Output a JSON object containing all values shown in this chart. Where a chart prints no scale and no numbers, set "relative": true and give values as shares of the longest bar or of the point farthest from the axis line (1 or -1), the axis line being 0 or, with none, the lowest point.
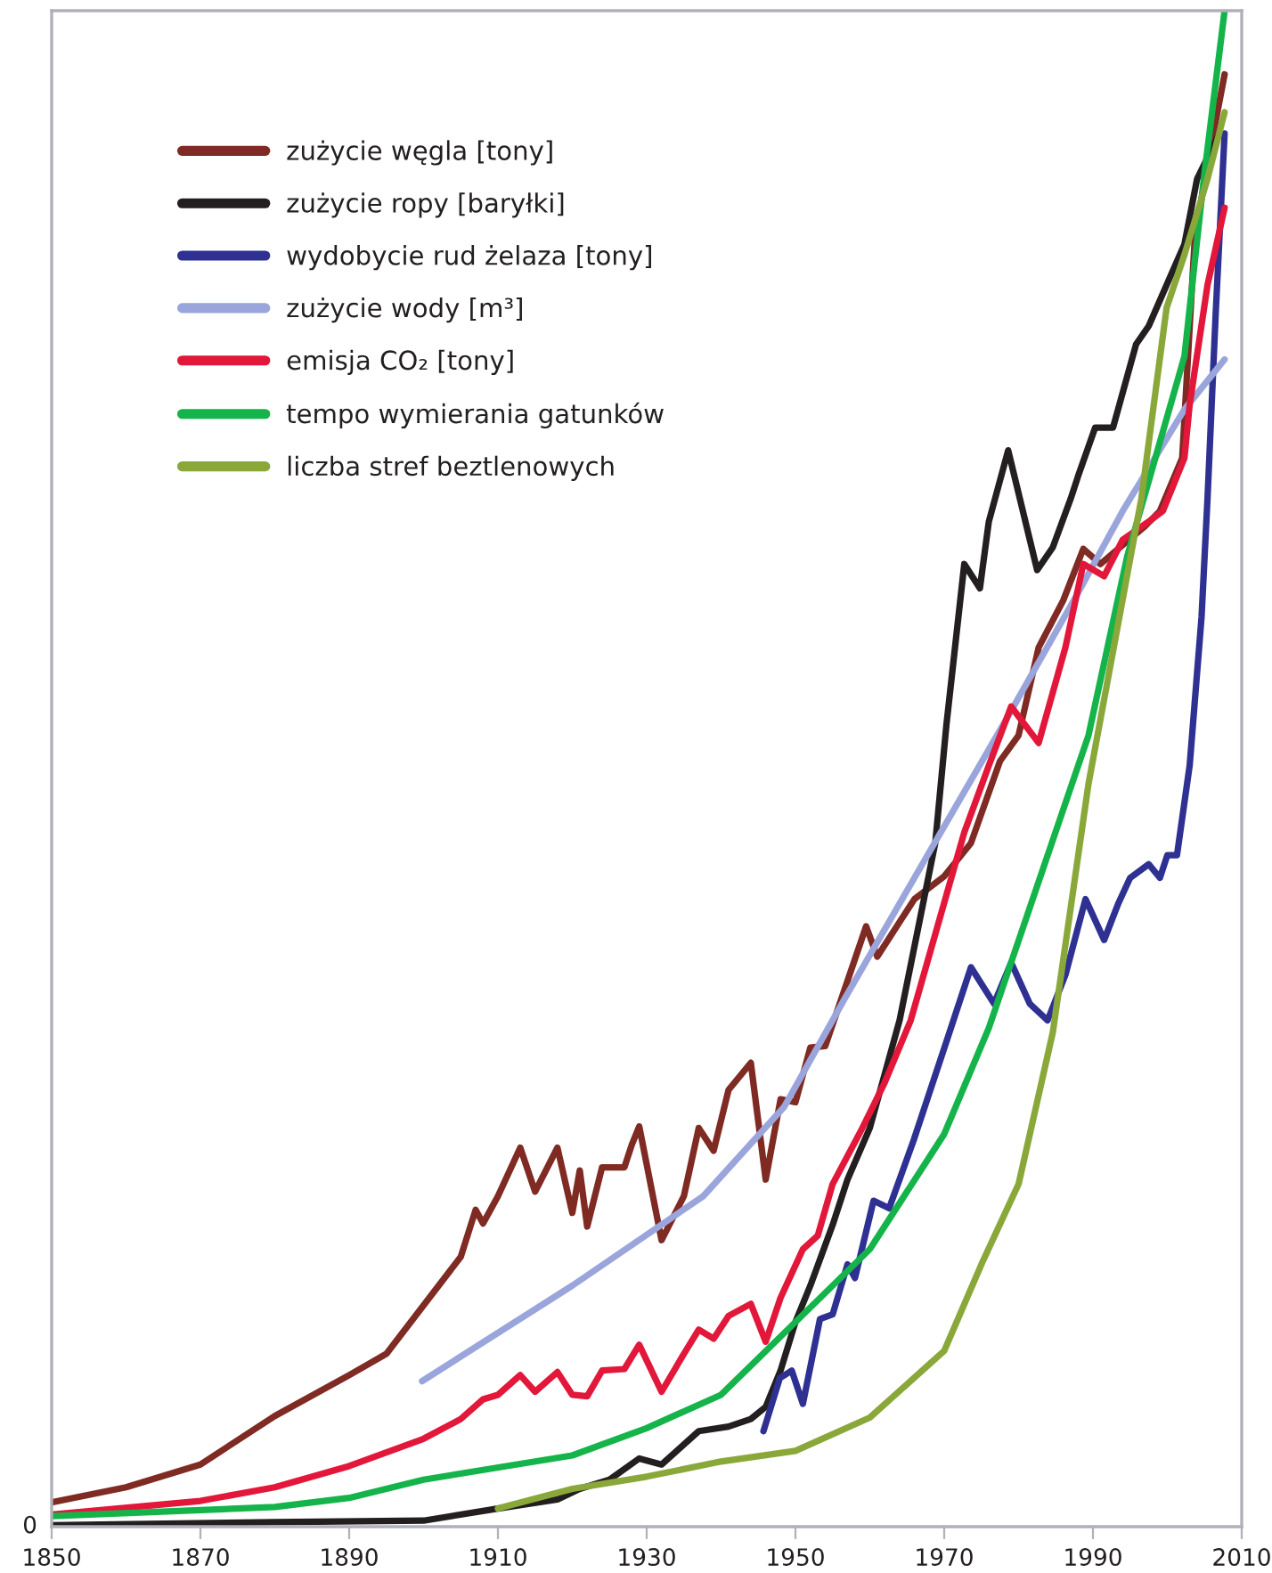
{
  "chart_data": {
    "type": "line",
    "relative": true,
    "xlim": [
      1850,
      2010
    ],
    "xticks": [
      1850,
      1870,
      1890,
      1910,
      1930,
      1950,
      1970,
      1990,
      2010
    ],
    "annotations": [
      "0"
    ],
    "legend": "top left",
    "grid": false,
    "series": [
      {
        "name": "zużycie węgla [tony]",
        "color": "#7f2a23",
        "x": [
          1850,
          1860,
          1870,
          1880,
          1890,
          1895,
          1900,
          1905,
          1907,
          1908,
          1910,
          1913,
          1915,
          1918,
          1920,
          1921,
          1922,
          1924,
          1927,
          1928,
          1929,
          1932,
          1935,
          1937,
          1939,
          1941,
          1944,
          1946,
          1948,
          1950,
          1952,
          1954,
          1957,
          1959.5,
          1961,
          1966,
          1970,
          1973.6,
          1977.5,
          1980,
          1982.7,
          1986,
          1988.7,
          1991,
          1997,
          1999,
          2002,
          2003.7,
          2005.8,
          2007.7
        ],
        "values": [
          0.016,
          0.026,
          0.041,
          0.073,
          0.1,
          0.114,
          0.146,
          0.178,
          0.209,
          0.2,
          0.218,
          0.25,
          0.221,
          0.25,
          0.207,
          0.235,
          0.198,
          0.237,
          0.237,
          0.252,
          0.264,
          0.189,
          0.218,
          0.263,
          0.248,
          0.288,
          0.306,
          0.229,
          0.282,
          0.28,
          0.316,
          0.317,
          0.36,
          0.396,
          0.376,
          0.414,
          0.429,
          0.451,
          0.505,
          0.522,
          0.58,
          0.611,
          0.645,
          0.635,
          0.66,
          0.67,
          0.705,
          0.851,
          0.909,
          0.958
        ]
      },
      {
        "name": "zużycie ropy [baryłki]",
        "color": "#231f20",
        "x": [
          1850,
          1880,
          1900,
          1910,
          1918,
          1921,
          1925,
          1929,
          1932,
          1937,
          1941,
          1944,
          1946,
          1948,
          1950,
          1952,
          1955,
          1957,
          1960,
          1964,
          1968.8,
          1970.3,
          1972.7,
          1974.8,
          1976,
          1978.6,
          1982.5,
          1984.6,
          1987,
          1988,
          1990.3,
          1992.7,
          1995.8,
          1997.5,
          1999.9,
          2002.3,
          2004,
          2007
        ],
        "values": [
          0.001,
          0.003,
          0.004,
          0.012,
          0.018,
          0.025,
          0.031,
          0.045,
          0.041,
          0.063,
          0.066,
          0.071,
          0.079,
          0.103,
          0.135,
          0.159,
          0.199,
          0.229,
          0.263,
          0.334,
          0.451,
          0.529,
          0.635,
          0.619,
          0.663,
          0.71,
          0.631,
          0.646,
          0.678,
          0.693,
          0.725,
          0.725,
          0.78,
          0.792,
          0.819,
          0.846,
          0.889,
          0.919
        ]
      },
      {
        "name": "wydobycie rud żelaza [tony]",
        "color": "#2e3192",
        "x": [
          1945.7,
          1947.9,
          1949.5,
          1951,
          1953.3,
          1955,
          1957,
          1958,
          1960.5,
          1962.6,
          1965.9,
          1970.3,
          1973.6,
          1976.7,
          1979,
          1981.5,
          1983.9,
          1986.3,
          1989,
          1991.5,
          1993.4,
          1995,
          1997.5,
          1999,
          2000,
          2001.3,
          2003,
          2004.6,
          2005.4,
          2006.5,
          2007.7
        ],
        "values": [
          0.063,
          0.098,
          0.103,
          0.081,
          0.137,
          0.14,
          0.173,
          0.164,
          0.215,
          0.21,
          0.255,
          0.32,
          0.369,
          0.345,
          0.372,
          0.345,
          0.334,
          0.364,
          0.414,
          0.387,
          0.411,
          0.428,
          0.437,
          0.428,
          0.443,
          0.443,
          0.502,
          0.6,
          0.678,
          0.8,
          0.919
        ]
      },
      {
        "name": "zużycie wody [m³]",
        "color": "#9aa5dc",
        "x": [
          1899.8,
          1920,
          1937.6,
          1948.5,
          1956.7,
          1966,
          1978.4,
          1988,
          1994,
          2002.3,
          2007.7
        ],
        "values": [
          0.096,
          0.159,
          0.218,
          0.277,
          0.349,
          0.428,
          0.533,
          0.616,
          0.67,
          0.737,
          0.77
        ]
      },
      {
        "name": "emisja CO₂ [tony]",
        "color": "#e2173a",
        "x": [
          1850,
          1870,
          1880,
          1890,
          1900,
          1905,
          1908,
          1910,
          1913,
          1915,
          1918,
          1920,
          1922,
          1924,
          1927,
          1929,
          1932,
          1935,
          1937,
          1939,
          1941,
          1944,
          1946,
          1948,
          1951,
          1953,
          1955,
          1959,
          1962,
          1965.5,
          1972.7,
          1976,
          1979,
          1982.7,
          1986.3,
          1988.7,
          1991.5,
          1994,
          1997.5,
          1999.4,
          2002.3,
          2003,
          2005.4,
          2007.7
        ],
        "values": [
          0.008,
          0.017,
          0.026,
          0.04,
          0.058,
          0.071,
          0.084,
          0.087,
          0.1,
          0.089,
          0.102,
          0.087,
          0.086,
          0.103,
          0.104,
          0.12,
          0.089,
          0.114,
          0.13,
          0.124,
          0.139,
          0.147,
          0.122,
          0.151,
          0.183,
          0.192,
          0.226,
          0.263,
          0.293,
          0.334,
          0.458,
          0.502,
          0.541,
          0.517,
          0.58,
          0.635,
          0.627,
          0.651,
          0.663,
          0.67,
          0.705,
          0.74,
          0.819,
          0.87
        ]
      },
      {
        "name": "tempo wymierania gatunków",
        "color": "#14b44a",
        "x": [
          1850,
          1870,
          1880,
          1890,
          1900,
          1920,
          1930,
          1940,
          1950,
          1960,
          1970,
          1976,
          1989.4,
          1994.6,
          2002.3,
          2004.9,
          2007.7
        ],
        "values": [
          0.007,
          0.011,
          0.013,
          0.019,
          0.031,
          0.047,
          0.065,
          0.087,
          0.135,
          0.183,
          0.259,
          0.329,
          0.522,
          0.64,
          0.772,
          0.889,
          1.0
        ]
      },
      {
        "name": "liczba stref beztlenowych",
        "color": "#8aa83a",
        "x": [
          1910,
          1920,
          1930,
          1940,
          1950,
          1960,
          1970,
          1975,
          1980,
          1984.6,
          1989.4,
          1996.5,
          1999.9,
          2002.3,
          2005.4,
          2007.7
        ],
        "values": [
          0.012,
          0.025,
          0.033,
          0.043,
          0.05,
          0.072,
          0.116,
          0.173,
          0.226,
          0.326,
          0.49,
          0.678,
          0.804,
          0.839,
          0.889,
          0.933
        ]
      }
    ]
  }
}
